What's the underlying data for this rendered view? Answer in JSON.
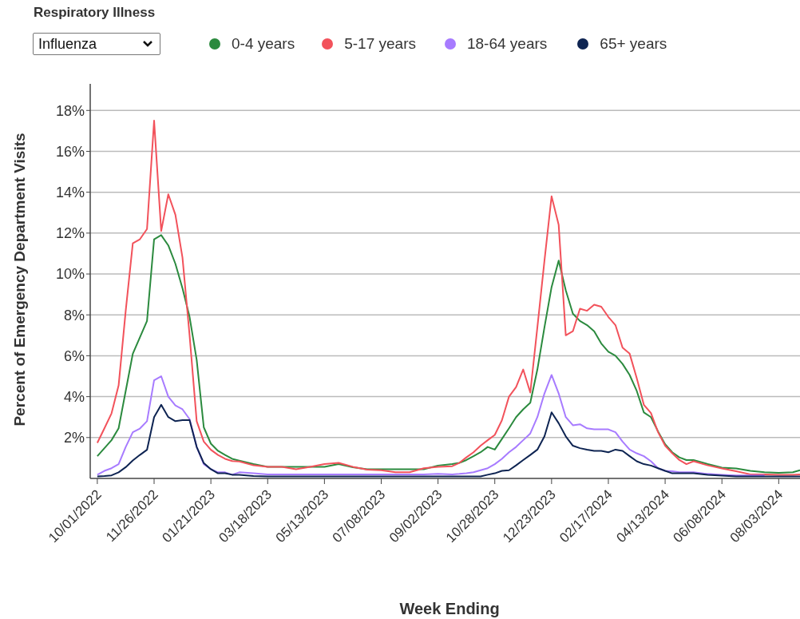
{
  "chart_data": {
    "type": "line",
    "xlabel": "Week Ending",
    "ylabel": "Percent of Emergency Department Visits",
    "annotations": [
      "Respiratory Illness",
      "Influenza"
    ],
    "x": [
      "2022-10-01",
      "2022-10-08",
      "2022-10-15",
      "2022-10-22",
      "2022-10-29",
      "2022-11-05",
      "2022-11-12",
      "2022-11-19",
      "2022-11-26",
      "2022-12-03",
      "2022-12-10",
      "2022-12-17",
      "2022-12-24",
      "2022-12-31",
      "2023-01-07",
      "2023-01-14",
      "2023-01-21",
      "2023-01-28",
      "2023-02-04",
      "2023-02-11",
      "2023-02-18",
      "2023-03-04",
      "2023-03-18",
      "2023-04-01",
      "2023-04-15",
      "2023-04-29",
      "2023-05-13",
      "2023-05-27",
      "2023-06-10",
      "2023-06-24",
      "2023-07-08",
      "2023-07-22",
      "2023-08-05",
      "2023-08-19",
      "2023-09-02",
      "2023-09-16",
      "2023-09-23",
      "2023-09-30",
      "2023-10-07",
      "2023-10-14",
      "2023-10-21",
      "2023-10-28",
      "2023-11-04",
      "2023-11-11",
      "2023-11-18",
      "2023-11-25",
      "2023-12-02",
      "2023-12-09",
      "2023-12-16",
      "2023-12-23",
      "2023-12-30",
      "2024-01-06",
      "2024-01-13",
      "2024-01-20",
      "2024-01-27",
      "2024-02-03",
      "2024-02-10",
      "2024-02-17",
      "2024-02-24",
      "2024-03-02",
      "2024-03-09",
      "2024-03-16",
      "2024-03-23",
      "2024-03-30",
      "2024-04-06",
      "2024-04-13",
      "2024-04-20",
      "2024-04-27",
      "2024-05-04",
      "2024-05-11",
      "2024-05-25",
      "2024-06-08",
      "2024-06-22",
      "2024-07-06",
      "2024-07-20",
      "2024-08-03",
      "2024-08-17",
      "2024-08-24"
    ],
    "series": [
      {
        "name": "0-4 years",
        "color": "#2b8a3e",
        "values": [
          1.09,
          1.48,
          1.87,
          2.45,
          4.28,
          6.1,
          6.9,
          7.7,
          11.7,
          11.9,
          11.4,
          10.5,
          9.3,
          7.9,
          5.8,
          2.5,
          1.7,
          1.35,
          1.15,
          0.96,
          0.87,
          0.7,
          0.57,
          0.57,
          0.57,
          0.57,
          0.57,
          0.7,
          0.55,
          0.45,
          0.45,
          0.45,
          0.45,
          0.45,
          0.63,
          0.7,
          0.76,
          0.9,
          1.09,
          1.28,
          1.54,
          1.41,
          1.93,
          2.45,
          3.0,
          3.38,
          3.7,
          5.33,
          7.4,
          9.36,
          10.66,
          9.2,
          8.06,
          7.7,
          7.5,
          7.2,
          6.6,
          6.2,
          6.0,
          5.6,
          5.06,
          4.28,
          3.23,
          3.0,
          2.3,
          1.67,
          1.28,
          1.03,
          0.9,
          0.9,
          0.7,
          0.53,
          0.49,
          0.37,
          0.3,
          0.27,
          0.3,
          0.4
        ]
      },
      {
        "name": "5-17 years",
        "color": "#f2525b",
        "values": [
          1.74,
          2.45,
          3.18,
          4.55,
          8.2,
          11.5,
          11.7,
          12.2,
          17.5,
          12.1,
          13.9,
          12.9,
          10.8,
          7.0,
          2.8,
          1.8,
          1.4,
          1.15,
          0.96,
          0.85,
          0.83,
          0.64,
          0.57,
          0.57,
          0.45,
          0.57,
          0.7,
          0.76,
          0.57,
          0.43,
          0.4,
          0.3,
          0.3,
          0.5,
          0.57,
          0.6,
          0.76,
          1.03,
          1.28,
          1.6,
          1.87,
          2.13,
          2.84,
          4.0,
          4.47,
          5.33,
          4.2,
          7.4,
          10.66,
          13.8,
          12.4,
          7.0,
          7.2,
          8.3,
          8.2,
          8.5,
          8.4,
          7.9,
          7.5,
          6.4,
          6.1,
          4.9,
          3.6,
          3.2,
          2.26,
          1.6,
          1.23,
          0.9,
          0.7,
          0.84,
          0.64,
          0.49,
          0.35,
          0.2,
          0.2,
          0.18,
          0.18,
          0.2
        ]
      },
      {
        "name": "18-64 years",
        "color": "#a77bff",
        "values": [
          0.18,
          0.37,
          0.5,
          0.7,
          1.54,
          2.26,
          2.44,
          2.8,
          4.8,
          5.0,
          4.0,
          3.57,
          3.38,
          2.9,
          1.54,
          0.7,
          0.45,
          0.3,
          0.3,
          0.18,
          0.3,
          0.25,
          0.2,
          0.2,
          0.2,
          0.2,
          0.2,
          0.2,
          0.2,
          0.2,
          0.2,
          0.2,
          0.2,
          0.2,
          0.22,
          0.2,
          0.22,
          0.25,
          0.3,
          0.4,
          0.5,
          0.7,
          0.96,
          1.28,
          1.54,
          1.87,
          2.2,
          3.0,
          4.16,
          5.06,
          4.16,
          3.0,
          2.6,
          2.65,
          2.45,
          2.4,
          2.4,
          2.4,
          2.26,
          1.8,
          1.41,
          1.23,
          1.09,
          0.84,
          0.5,
          0.37,
          0.35,
          0.3,
          0.3,
          0.3,
          0.22,
          0.18,
          0.15,
          0.15,
          0.15,
          null,
          null,
          null
        ]
      },
      {
        "name": "65+ years",
        "color": "#0e2452",
        "values": [
          0.1,
          0.12,
          0.15,
          0.3,
          0.55,
          0.88,
          1.15,
          1.4,
          3.0,
          3.6,
          3.0,
          2.8,
          2.85,
          2.85,
          1.54,
          0.75,
          0.45,
          0.25,
          0.25,
          0.18,
          0.18,
          0.12,
          0.1,
          0.1,
          0.1,
          0.1,
          0.1,
          0.1,
          0.1,
          0.1,
          0.1,
          0.1,
          0.1,
          0.1,
          0.1,
          0.1,
          0.1,
          0.1,
          0.1,
          0.1,
          0.18,
          0.25,
          0.37,
          0.4,
          0.64,
          0.9,
          1.15,
          1.41,
          2.06,
          3.23,
          2.7,
          2.06,
          1.6,
          1.48,
          1.41,
          1.35,
          1.35,
          1.28,
          1.41,
          1.35,
          1.09,
          0.84,
          0.7,
          0.63,
          0.5,
          0.37,
          0.25,
          0.25,
          0.25,
          0.25,
          0.18,
          0.14,
          0.1,
          0.1,
          0.1,
          0.1,
          0.1,
          0.1
        ]
      }
    ],
    "xlim": [
      "2022-09-24",
      "2024-08-24"
    ],
    "xticks": [
      {
        "value": "2022-10-01",
        "label": "10/01/2022"
      },
      {
        "value": "2022-11-26",
        "label": "11/26/2022"
      },
      {
        "value": "2023-01-21",
        "label": "01/21/2023"
      },
      {
        "value": "2023-03-18",
        "label": "03/18/2023"
      },
      {
        "value": "2023-05-13",
        "label": "05/13/2023"
      },
      {
        "value": "2023-07-08",
        "label": "07/08/2023"
      },
      {
        "value": "2023-09-02",
        "label": "09/02/2023"
      },
      {
        "value": "2023-10-28",
        "label": "10/28/2023"
      },
      {
        "value": "2023-12-23",
        "label": "12/23/2023"
      },
      {
        "value": "2024-02-17",
        "label": "02/17/2024"
      },
      {
        "value": "2024-04-13",
        "label": "04/13/2024"
      },
      {
        "value": "2024-06-08",
        "label": "06/08/2024"
      },
      {
        "value": "2024-08-03",
        "label": "08/03/2024"
      }
    ],
    "ylim": [
      0,
      19.3
    ],
    "yticks": [
      {
        "value": 2,
        "label": "2%"
      },
      {
        "value": 4,
        "label": "4%"
      },
      {
        "value": 6,
        "label": "6%"
      },
      {
        "value": 8,
        "label": "8%"
      },
      {
        "value": 10,
        "label": "10%"
      },
      {
        "value": 12,
        "label": "12%"
      },
      {
        "value": 14,
        "label": "14%"
      },
      {
        "value": 16,
        "label": "16%"
      },
      {
        "value": 18,
        "label": "18%"
      }
    ],
    "grid": "y",
    "legend": "top"
  }
}
